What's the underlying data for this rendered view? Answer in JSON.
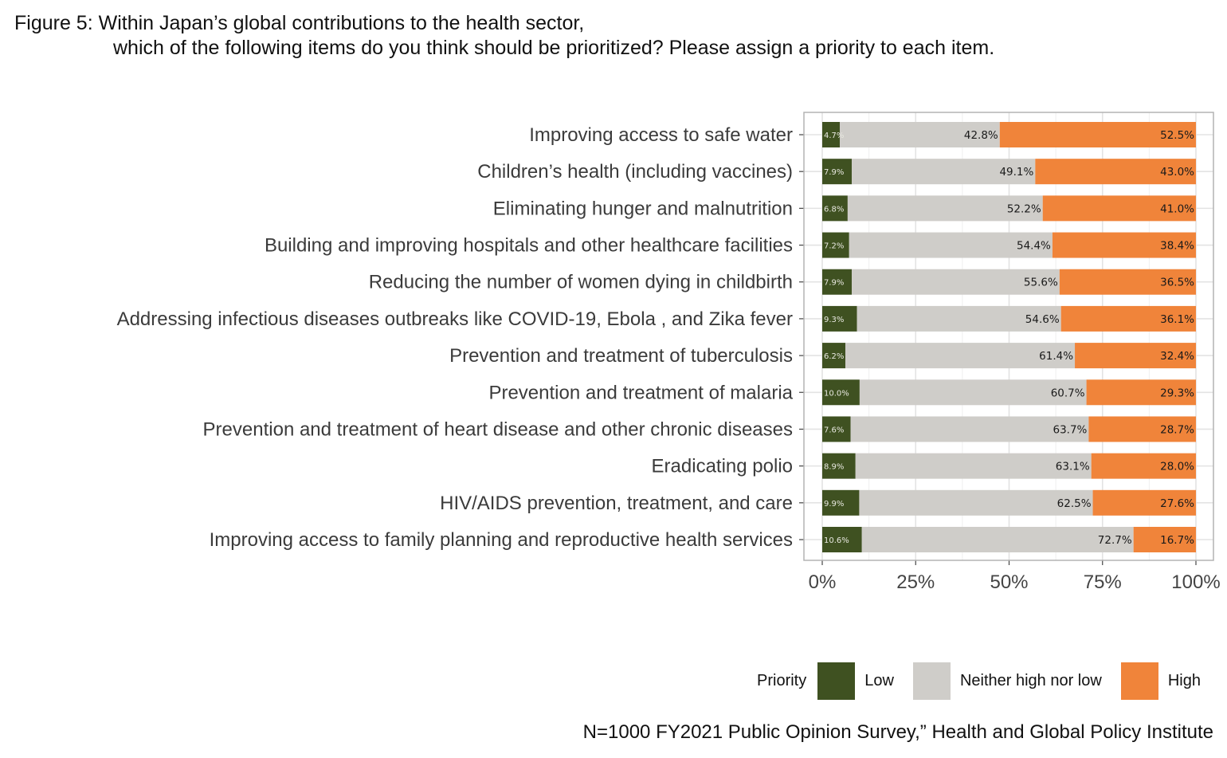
{
  "title": {
    "line1": "Figure 5: Within Japan’s global contributions to the health sector,",
    "line2": "which of the following items do you think should be prioritized? Please assign a priority to each item."
  },
  "caption": "N=1000 FY2021 Public Opinion Survey,” Health and Global Policy Institute",
  "legend": {
    "title": "Priority",
    "items": [
      {
        "label": "Low",
        "color": "#3f5121"
      },
      {
        "label": "Neither high nor low",
        "color": "#cfcdc9"
      },
      {
        "label": "High",
        "color": "#f0843a"
      }
    ]
  },
  "chart_data": {
    "type": "bar",
    "orientation": "horizontal",
    "stacked": true,
    "title": "Figure 5: Within Japan’s global contributions to the health sector, which of the following items do you think should be prioritized? Please assign a priority to each item.",
    "xlabel": "",
    "ylabel": "",
    "xlim": [
      0,
      100
    ],
    "x_ticks": [
      "0%",
      "25%",
      "50%",
      "75%",
      "100%"
    ],
    "x_tick_values": [
      0,
      25,
      50,
      75,
      100
    ],
    "grid": true,
    "legend_position": "bottom-right",
    "categories": [
      "Improving access to safe water",
      "Children’s health (including vaccines)",
      "Eliminating hunger and malnutrition",
      "Building and improving hospitals and other healthcare facilities",
      "Reducing the number of women dying in childbirth",
      "Addressing infectious diseases outbreaks like COVID-19, Ebola , and Zika fever",
      "Prevention and treatment of tuberculosis",
      "Prevention and treatment of malaria",
      "Prevention and treatment of heart disease and other chronic diseases",
      "Eradicating polio",
      "HIV/AIDS prevention, treatment, and care",
      "Improving access to family planning and reproductive health services"
    ],
    "series": [
      {
        "name": "Low",
        "color": "#3f5121",
        "values": [
          4.7,
          7.9,
          6.8,
          7.2,
          7.9,
          9.3,
          6.2,
          10.0,
          7.6,
          8.9,
          9.9,
          10.6
        ]
      },
      {
        "name": "Neither high nor low",
        "color": "#cfcdc9",
        "values": [
          42.8,
          49.1,
          52.2,
          54.4,
          55.6,
          54.6,
          61.4,
          60.7,
          63.7,
          63.1,
          62.5,
          72.7
        ]
      },
      {
        "name": "High",
        "color": "#f0843a",
        "values": [
          52.5,
          43.0,
          41.0,
          38.4,
          36.5,
          36.1,
          32.4,
          29.3,
          28.7,
          28.0,
          27.6,
          16.7
        ]
      }
    ]
  }
}
